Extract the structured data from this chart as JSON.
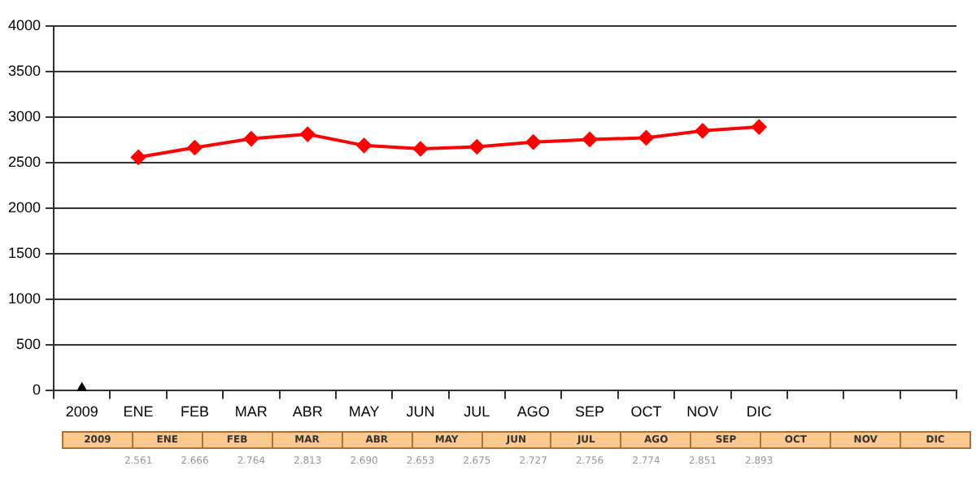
{
  "chart_data": {
    "type": "line",
    "categories": [
      "2009",
      "ENE",
      "FEB",
      "MAR",
      "ABR",
      "MAY",
      "JUN",
      "JUL",
      "AGO",
      "SEP",
      "OCT",
      "NOV",
      "DIC",
      null,
      null,
      null
    ],
    "series": [
      {
        "color": "#000000",
        "marker": "triangle",
        "values": [
          0,
          null,
          null,
          null,
          null,
          null,
          null,
          null,
          null,
          null,
          null,
          null,
          null,
          null,
          null,
          null
        ]
      },
      {
        "color": "#ff0000",
        "marker": "diamond",
        "values": [
          null,
          2561,
          2666,
          2764,
          2813,
          2690,
          2653,
          2675,
          2727,
          2756,
          2774,
          2851,
          2893,
          null,
          null,
          null
        ],
        "value_labels": [
          null,
          "2.561",
          "2.666",
          "2.764",
          "2.813",
          "2.690",
          "2.653",
          "2.675",
          "2.727",
          "2.756",
          "2.774",
          "2.851",
          "2.893",
          null,
          null,
          null
        ]
      }
    ],
    "ylim": [
      0,
      4000
    ],
    "yticks": [
      0,
      500,
      1000,
      1500,
      2000,
      2500,
      3000,
      3500,
      4000
    ],
    "grid": "y",
    "legend": false
  }
}
